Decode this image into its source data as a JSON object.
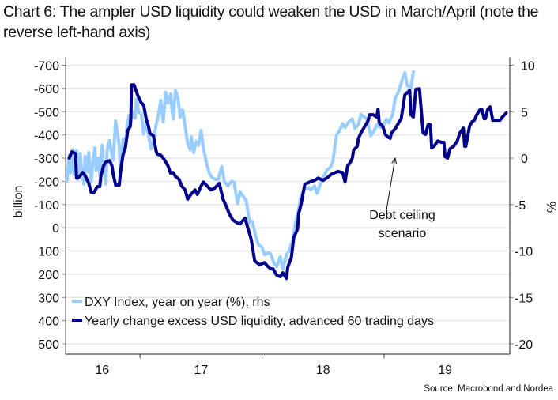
{
  "title": "Chart 6: The ampler USD liquidity could weaken the USD in March/April (note the reverse left-hand axis)",
  "source": "Source: Macrobond and Nordea",
  "colors": {
    "dxy": "#99ccff",
    "liquidity": "#00008c",
    "grid": "#e6e6e6",
    "axis": "#222222"
  },
  "chart_data": {
    "type": "line",
    "title": "Chart 6: The ampler USD liquidity could weaken the USD in March/April (note the reverse left-hand axis)",
    "xlabel": "",
    "ylabel": "billion",
    "ylabel_right": "%",
    "xlim": [
      2016.39,
      2020.03
    ],
    "ylim_left": [
      500,
      -700
    ],
    "ylim_left_reversed": true,
    "ylim_right": [
      -20,
      10
    ],
    "x_ticks": [
      {
        "label": "16",
        "pos": 2016.69
      },
      {
        "label": "17",
        "pos": 2017.5
      },
      {
        "label": "18",
        "pos": 2018.5
      },
      {
        "label": "19",
        "pos": 2019.5
      }
    ],
    "x_tick_marks": [
      2017,
      2018,
      2019
    ],
    "y_ticks_left": [
      "-700",
      "-600",
      "-500",
      "-400",
      "-300",
      "-200",
      "-100",
      "0",
      "100",
      "200",
      "300",
      "400",
      "500"
    ],
    "y_tick_values_left": [
      -700,
      -600,
      -500,
      -400,
      -300,
      -200,
      -100,
      0,
      100,
      200,
      300,
      400,
      500
    ],
    "y_ticks_right": [
      "10",
      "5",
      "0",
      "-5",
      "-10",
      "-15",
      "-20"
    ],
    "y_tick_values_right": [
      10,
      5,
      0,
      -5,
      -10,
      -15,
      -20
    ],
    "grid": true,
    "legend_position": "bottom-left",
    "annotation": {
      "lines": [
        "Debt ceiling",
        "scenario"
      ],
      "arrow_from": [
        2019.02,
        -5.55
      ],
      "arrow_to": [
        2019.09,
        -0.0
      ]
    },
    "series": [
      {
        "name": "DXY Index, year on year (%), rhs",
        "axis": "right",
        "x": [
          2016.4,
          2016.42,
          2016.43,
          2016.45,
          2016.46,
          2016.48,
          2016.49,
          2016.51,
          2016.52,
          2016.54,
          2016.55,
          2016.57,
          2016.58,
          2016.6,
          2016.61,
          2016.63,
          2016.64,
          2016.66,
          2016.67,
          2016.69,
          2016.7,
          2016.72,
          2016.73,
          2016.75,
          2016.76,
          2016.78,
          2016.8,
          2016.81,
          2016.83,
          2016.84,
          2016.86,
          2016.88,
          2016.89,
          2016.91,
          2016.92,
          2016.94,
          2016.96,
          2016.97,
          2016.99,
          2017.01,
          2017.03,
          2017.05,
          2017.07,
          2017.09,
          2017.11,
          2017.13,
          2017.15,
          2017.17,
          2017.19,
          2017.21,
          2017.23,
          2017.25,
          2017.27,
          2017.29,
          2017.31,
          2017.33,
          2017.35,
          2017.37,
          2017.39,
          2017.41,
          2017.42,
          2017.44,
          2017.46,
          2017.48,
          2017.5,
          2017.52,
          2017.55,
          2017.57,
          2017.59,
          2017.62,
          2017.64,
          2017.67,
          2017.69,
          2017.72,
          2017.75,
          2017.77,
          2017.8,
          2017.82,
          2017.85,
          2017.87,
          2017.9,
          2017.92,
          2017.95,
          2017.97,
          2018.0,
          2018.02,
          2018.05,
          2018.07,
          2018.1,
          2018.12,
          2018.15,
          2018.17,
          2018.2,
          2018.22,
          2018.25,
          2018.27,
          2018.3,
          2018.32,
          2018.35,
          2018.38,
          2018.4,
          2018.43,
          2018.45,
          2018.48,
          2018.5,
          2018.53,
          2018.56,
          2018.58,
          2018.61,
          2018.63,
          2018.66,
          2018.68,
          2018.71,
          2018.74,
          2018.76,
          2018.79,
          2018.81,
          2018.84,
          2018.86,
          2018.89,
          2018.92,
          2018.94,
          2018.97,
          2018.99,
          2019.02,
          2019.04,
          2019.07,
          2019.09,
          2019.12,
          2019.15,
          2019.17,
          2019.19,
          2019.22,
          2019.24
        ],
        "values": [
          -2.5,
          0.3,
          -1.6,
          0.9,
          -1.8,
          0.8,
          -2.3,
          0.5,
          -1.2,
          -2.8,
          0.2,
          -1.5,
          0.6,
          -2.6,
          -0.9,
          1.1,
          -1.3,
          0.0,
          -1.9,
          1.4,
          -0.6,
          -2.8,
          0.9,
          1.9,
          1.0,
          -0.2,
          4.0,
          3.2,
          1.3,
          -1.7,
          2.1,
          0.9,
          3.1,
          4.6,
          3.6,
          5.0,
          4.3,
          6.4,
          4.9,
          4.8,
          2.6,
          3.7,
          2.5,
          1.0,
          2.0,
          3.5,
          4.6,
          6.2,
          3.9,
          7.1,
          5.9,
          6.9,
          4.2,
          7.3,
          6.5,
          4.4,
          5.2,
          3.4,
          1.6,
          0.9,
          2.3,
          0.6,
          1.8,
          1.4,
          3.0,
          1.0,
          -0.8,
          -1.7,
          -2.1,
          -2.3,
          -2.3,
          -0.9,
          -2.5,
          -3.0,
          -2.5,
          -2.6,
          -4.9,
          -3.6,
          -4.2,
          -4.6,
          -7.0,
          -6.8,
          -8.5,
          -9.3,
          -9.6,
          -10.4,
          -10.2,
          -10.3,
          -11.4,
          -11.7,
          -10.6,
          -11.9,
          -10.4,
          -10.0,
          -8.9,
          -7.2,
          -5.5,
          -4.0,
          -3.3,
          -3.2,
          -3.4,
          -3.0,
          -3.8,
          -2.7,
          -2.1,
          -1.3,
          -1.0,
          -0.4,
          2.5,
          2.8,
          3.7,
          3.3,
          3.9,
          4.2,
          3.2,
          3.6,
          4.7,
          4.4,
          4.2,
          2.4,
          3.0,
          3.6,
          3.3,
          3.4,
          4.2,
          3.8,
          4.7,
          6.4,
          7.2,
          8.5,
          9.2,
          7.8,
          7.6,
          9.3
        ]
      },
      {
        "name": "Yearly change excess USD liquidity, advanced 60 trading days",
        "axis": "left",
        "x": [
          2016.42,
          2016.44,
          2016.47,
          2016.48,
          2016.5,
          2016.53,
          2016.55,
          2016.58,
          2016.6,
          2016.62,
          2016.65,
          2016.67,
          2016.68,
          2016.7,
          2016.72,
          2016.75,
          2016.77,
          2016.78,
          2016.8,
          2016.83,
          2016.84,
          2016.86,
          2016.88,
          2016.9,
          2016.92,
          2016.925,
          2016.93,
          2016.95,
          2016.98,
          2017.01,
          2017.03,
          2017.05,
          2017.07,
          2017.08,
          2017.11,
          2017.13,
          2017.14,
          2017.17,
          2017.2,
          2017.23,
          2017.25,
          2017.27,
          2017.29,
          2017.32,
          2017.34,
          2017.37,
          2017.39,
          2017.42,
          2017.45,
          2017.47,
          2017.5,
          2017.52,
          2017.55,
          2017.58,
          2017.61,
          2017.65,
          2017.68,
          2017.71,
          2017.73,
          2017.76,
          2017.8,
          2017.82,
          2017.86,
          2017.91,
          2017.94,
          2017.98,
          2018.02,
          2018.04,
          2018.07,
          2018.09,
          2018.12,
          2018.15,
          2018.17,
          2018.2,
          2018.21,
          2018.24,
          2018.26,
          2018.29,
          2018.3,
          2018.32,
          2018.35,
          2018.39,
          2018.43,
          2018.46,
          2018.5,
          2018.53,
          2018.57,
          2018.62,
          2018.66,
          2018.68,
          2018.7,
          2018.72,
          2018.74,
          2018.75,
          2018.78,
          2018.79,
          2018.81,
          2018.83,
          2018.86,
          2018.87,
          2018.88,
          2018.91,
          2018.94,
          2018.95,
          2018.96,
          2018.99,
          2019.01,
          2019.03,
          2019.05,
          2019.06,
          2019.09,
          2019.12,
          2019.14,
          2019.16,
          2019.17,
          2019.19,
          2019.21,
          2019.22,
          2019.24,
          2019.26,
          2019.29,
          2019.32,
          2019.34,
          2019.36,
          2019.38,
          2019.39,
          2019.41,
          2019.44,
          2019.47,
          2019.49,
          2019.5,
          2019.52,
          2019.54,
          2019.57,
          2019.6,
          2019.62,
          2019.65,
          2019.66,
          2019.67,
          2019.7,
          2019.72,
          2019.74,
          2019.76,
          2019.79,
          2019.8,
          2019.82,
          2019.83,
          2019.85,
          2019.87,
          2019.89,
          2019.95,
          2019.97,
          2020.0
        ],
        "values": [
          -300,
          -327,
          -320,
          -214,
          -218,
          -238,
          -225,
          -191,
          -153,
          -150,
          -177,
          -177,
          -225,
          -266,
          -283,
          -289,
          -266,
          -231,
          -184,
          -184,
          -242,
          -313,
          -347,
          -419,
          -436,
          -477,
          -616,
          -616,
          -572,
          -538,
          -528,
          -470,
          -436,
          -408,
          -395,
          -334,
          -317,
          -313,
          -293,
          -266,
          -235,
          -238,
          -221,
          -208,
          -180,
          -163,
          -123,
          -146,
          -163,
          -143,
          -180,
          -197,
          -180,
          -163,
          -170,
          -191,
          -123,
          -89,
          -61,
          -34,
          -20,
          -17,
          -41,
          48,
          143,
          160,
          150,
          163,
          177,
          177,
          204,
          211,
          194,
          218,
          170,
          129,
          41,
          7,
          -61,
          -102,
          -187,
          -197,
          -204,
          -214,
          -204,
          -214,
          -231,
          -242,
          -238,
          -197,
          -266,
          -279,
          -300,
          -334,
          -351,
          -385,
          -408,
          -426,
          -453,
          -463,
          -487,
          -487,
          -477,
          -511,
          -453,
          -436,
          -402,
          -391,
          -385,
          -408,
          -426,
          -453,
          -470,
          -538,
          -572,
          -582,
          -592,
          -487,
          -477,
          -596,
          -599,
          -408,
          -402,
          -443,
          -443,
          -344,
          -351,
          -374,
          -368,
          -368,
          -306,
          -300,
          -340,
          -351,
          -374,
          -408,
          -429,
          -351,
          -351,
          -436,
          -456,
          -463,
          -487,
          -511,
          -511,
          -470,
          -470,
          -511,
          -521,
          -463,
          -463,
          -477,
          -494
        ]
      }
    ]
  }
}
